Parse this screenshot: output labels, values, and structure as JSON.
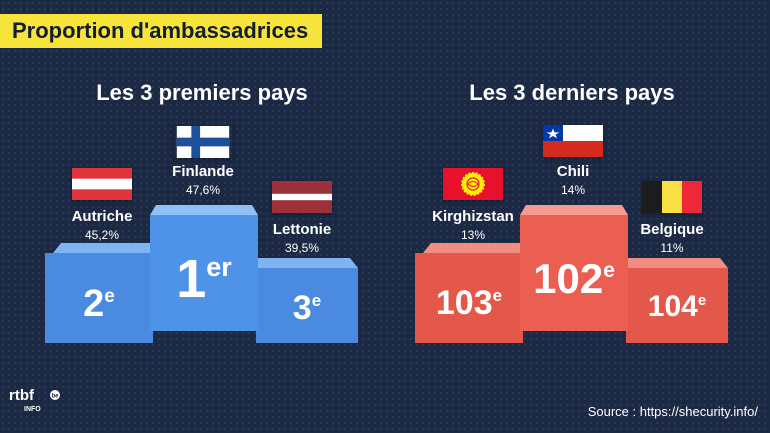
{
  "title": "Proportion d'ambassadrices",
  "sections": {
    "top": {
      "heading": "Les 3 premiers pays",
      "first": {
        "country": "Finlande",
        "pct": "47,6%",
        "rank_num": "1",
        "rank_suffix": "er",
        "flag_icon": "finland-flag-icon"
      },
      "second": {
        "country": "Autriche",
        "pct": "45,2%",
        "rank_num": "2",
        "rank_suffix": "e",
        "flag_icon": "austria-flag-icon"
      },
      "third": {
        "country": "Lettonie",
        "pct": "39,5%",
        "rank_num": "3",
        "rank_suffix": "e",
        "flag_icon": "latvia-flag-icon"
      },
      "color": "#4e8fe2"
    },
    "bottom": {
      "heading": "Les 3 derniers pays",
      "first": {
        "country": "Chili",
        "pct": "14%",
        "rank_num": "102",
        "rank_suffix": "e",
        "flag_icon": "chile-flag-icon"
      },
      "second": {
        "country": "Kirghizstan",
        "pct": "13%",
        "rank_num": "103",
        "rank_suffix": "e",
        "flag_icon": "kyrgyzstan-flag-icon"
      },
      "third": {
        "country": "Belgique",
        "pct": "11%",
        "rank_num": "104",
        "rank_suffix": "e",
        "flag_icon": "belgium-flag-icon"
      },
      "color": "#e8574a"
    }
  },
  "source": "Source : https://shecurity.info/",
  "logo": {
    "text": "rtbf",
    "sub": "INFO",
    "badge": "be"
  },
  "colors": {
    "background": "#1b2944",
    "title_badge": "#f7e43a"
  }
}
